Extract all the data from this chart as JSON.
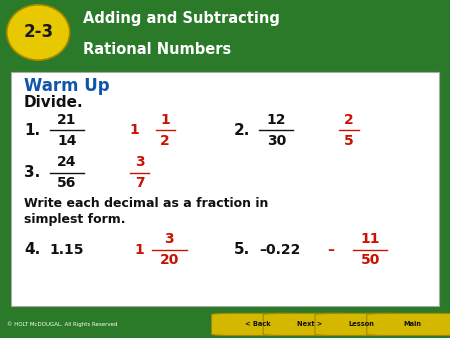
{
  "header_bg": "#2a7a2a",
  "header_text_color": "#ffffff",
  "badge_color": "#e8c800",
  "badge_text_color": "#1a1a1a",
  "lesson_number": "2-3",
  "title_line1": "Adding and Subtracting",
  "title_line2": "Rational Numbers",
  "content_bg": "#ffffff",
  "content_border": "#bbbbbb",
  "warm_up_color": "#1155aa",
  "black_color": "#111111",
  "red_color": "#cc1100",
  "footer_bg": "#2a7a2a",
  "footer_text": "© HOLT McDOUGAL. All Rights Reserved",
  "footer_btn_color": "#d4b800",
  "footer_btn_text": "#111111",
  "footer_buttons": [
    "< Back",
    "Next >",
    "Lesson",
    "Main"
  ]
}
